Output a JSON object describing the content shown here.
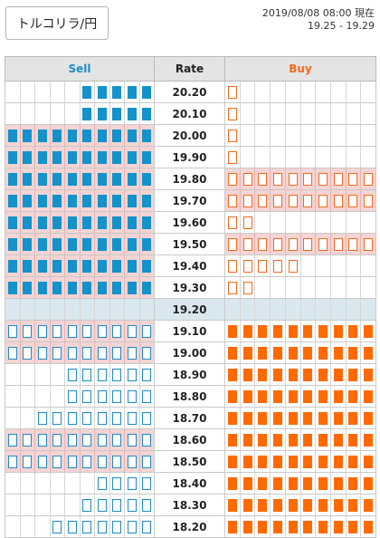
{
  "header": {
    "pair_label": "トルコリラ/円",
    "timestamp": "2019/08/08 08:00 現在",
    "range": "19.25 - 19.29"
  },
  "columns": {
    "sell": "Sell",
    "rate": "Rate",
    "buy": "Buy"
  },
  "colors": {
    "sell": "#1492c9",
    "buy": "#ff6a00",
    "highlight": "#f4d4d4",
    "current_row": "#d9e8ee"
  },
  "current_rate": "19.20",
  "rows": [
    {
      "rate": "20.20",
      "sell": 5,
      "sell_style": "filled",
      "sell_bg": false,
      "buy": 1,
      "buy_style": "open",
      "buy_bg": false
    },
    {
      "rate": "20.10",
      "sell": 5,
      "sell_style": "filled",
      "sell_bg": false,
      "buy": 1,
      "buy_style": "open",
      "buy_bg": false
    },
    {
      "rate": "20.00",
      "sell": 10,
      "sell_style": "filled",
      "sell_bg": true,
      "buy": 1,
      "buy_style": "open",
      "buy_bg": false
    },
    {
      "rate": "19.90",
      "sell": 10,
      "sell_style": "filled",
      "sell_bg": true,
      "buy": 1,
      "buy_style": "open",
      "buy_bg": false
    },
    {
      "rate": "19.80",
      "sell": 10,
      "sell_style": "filled",
      "sell_bg": true,
      "buy": 10,
      "buy_style": "open",
      "buy_bg": true
    },
    {
      "rate": "19.70",
      "sell": 10,
      "sell_style": "filled",
      "sell_bg": true,
      "buy": 10,
      "buy_style": "open",
      "buy_bg": true
    },
    {
      "rate": "19.60",
      "sell": 10,
      "sell_style": "filled",
      "sell_bg": true,
      "buy": 2,
      "buy_style": "open",
      "buy_bg": false
    },
    {
      "rate": "19.50",
      "sell": 10,
      "sell_style": "filled",
      "sell_bg": true,
      "buy": 10,
      "buy_style": "open",
      "buy_bg": true
    },
    {
      "rate": "19.40",
      "sell": 10,
      "sell_style": "filled",
      "sell_bg": true,
      "buy": 5,
      "buy_style": "open",
      "buy_bg": false
    },
    {
      "rate": "19.30",
      "sell": 10,
      "sell_style": "filled",
      "sell_bg": true,
      "buy": 2,
      "buy_style": "open",
      "buy_bg": false
    },
    {
      "rate": "19.20",
      "sell": 0,
      "sell_style": "open",
      "sell_bg": false,
      "buy": 0,
      "buy_style": "filled",
      "buy_bg": false,
      "current": true
    },
    {
      "rate": "19.10",
      "sell": 10,
      "sell_style": "open",
      "sell_bg": true,
      "buy": 10,
      "buy_style": "filled",
      "buy_bg": false
    },
    {
      "rate": "19.00",
      "sell": 10,
      "sell_style": "open",
      "sell_bg": true,
      "buy": 10,
      "buy_style": "filled",
      "buy_bg": false
    },
    {
      "rate": "18.90",
      "sell": 6,
      "sell_style": "open",
      "sell_bg": false,
      "buy": 10,
      "buy_style": "filled",
      "buy_bg": false
    },
    {
      "rate": "18.80",
      "sell": 6,
      "sell_style": "open",
      "sell_bg": false,
      "buy": 10,
      "buy_style": "filled",
      "buy_bg": false
    },
    {
      "rate": "18.70",
      "sell": 8,
      "sell_style": "open",
      "sell_bg": false,
      "buy": 10,
      "buy_style": "filled",
      "buy_bg": false
    },
    {
      "rate": "18.60",
      "sell": 10,
      "sell_style": "open",
      "sell_bg": true,
      "buy": 10,
      "buy_style": "filled",
      "buy_bg": false
    },
    {
      "rate": "18.50",
      "sell": 10,
      "sell_style": "open",
      "sell_bg": true,
      "buy": 10,
      "buy_style": "filled",
      "buy_bg": false
    },
    {
      "rate": "18.40",
      "sell": 4,
      "sell_style": "open",
      "sell_bg": false,
      "buy": 10,
      "buy_style": "filled",
      "buy_bg": false
    },
    {
      "rate": "18.30",
      "sell": 5,
      "sell_style": "open",
      "sell_bg": false,
      "buy": 10,
      "buy_style": "filled",
      "buy_bg": false
    },
    {
      "rate": "18.20",
      "sell": 7,
      "sell_style": "open",
      "sell_bg": false,
      "buy": 10,
      "buy_style": "filled",
      "buy_bg": false
    }
  ]
}
